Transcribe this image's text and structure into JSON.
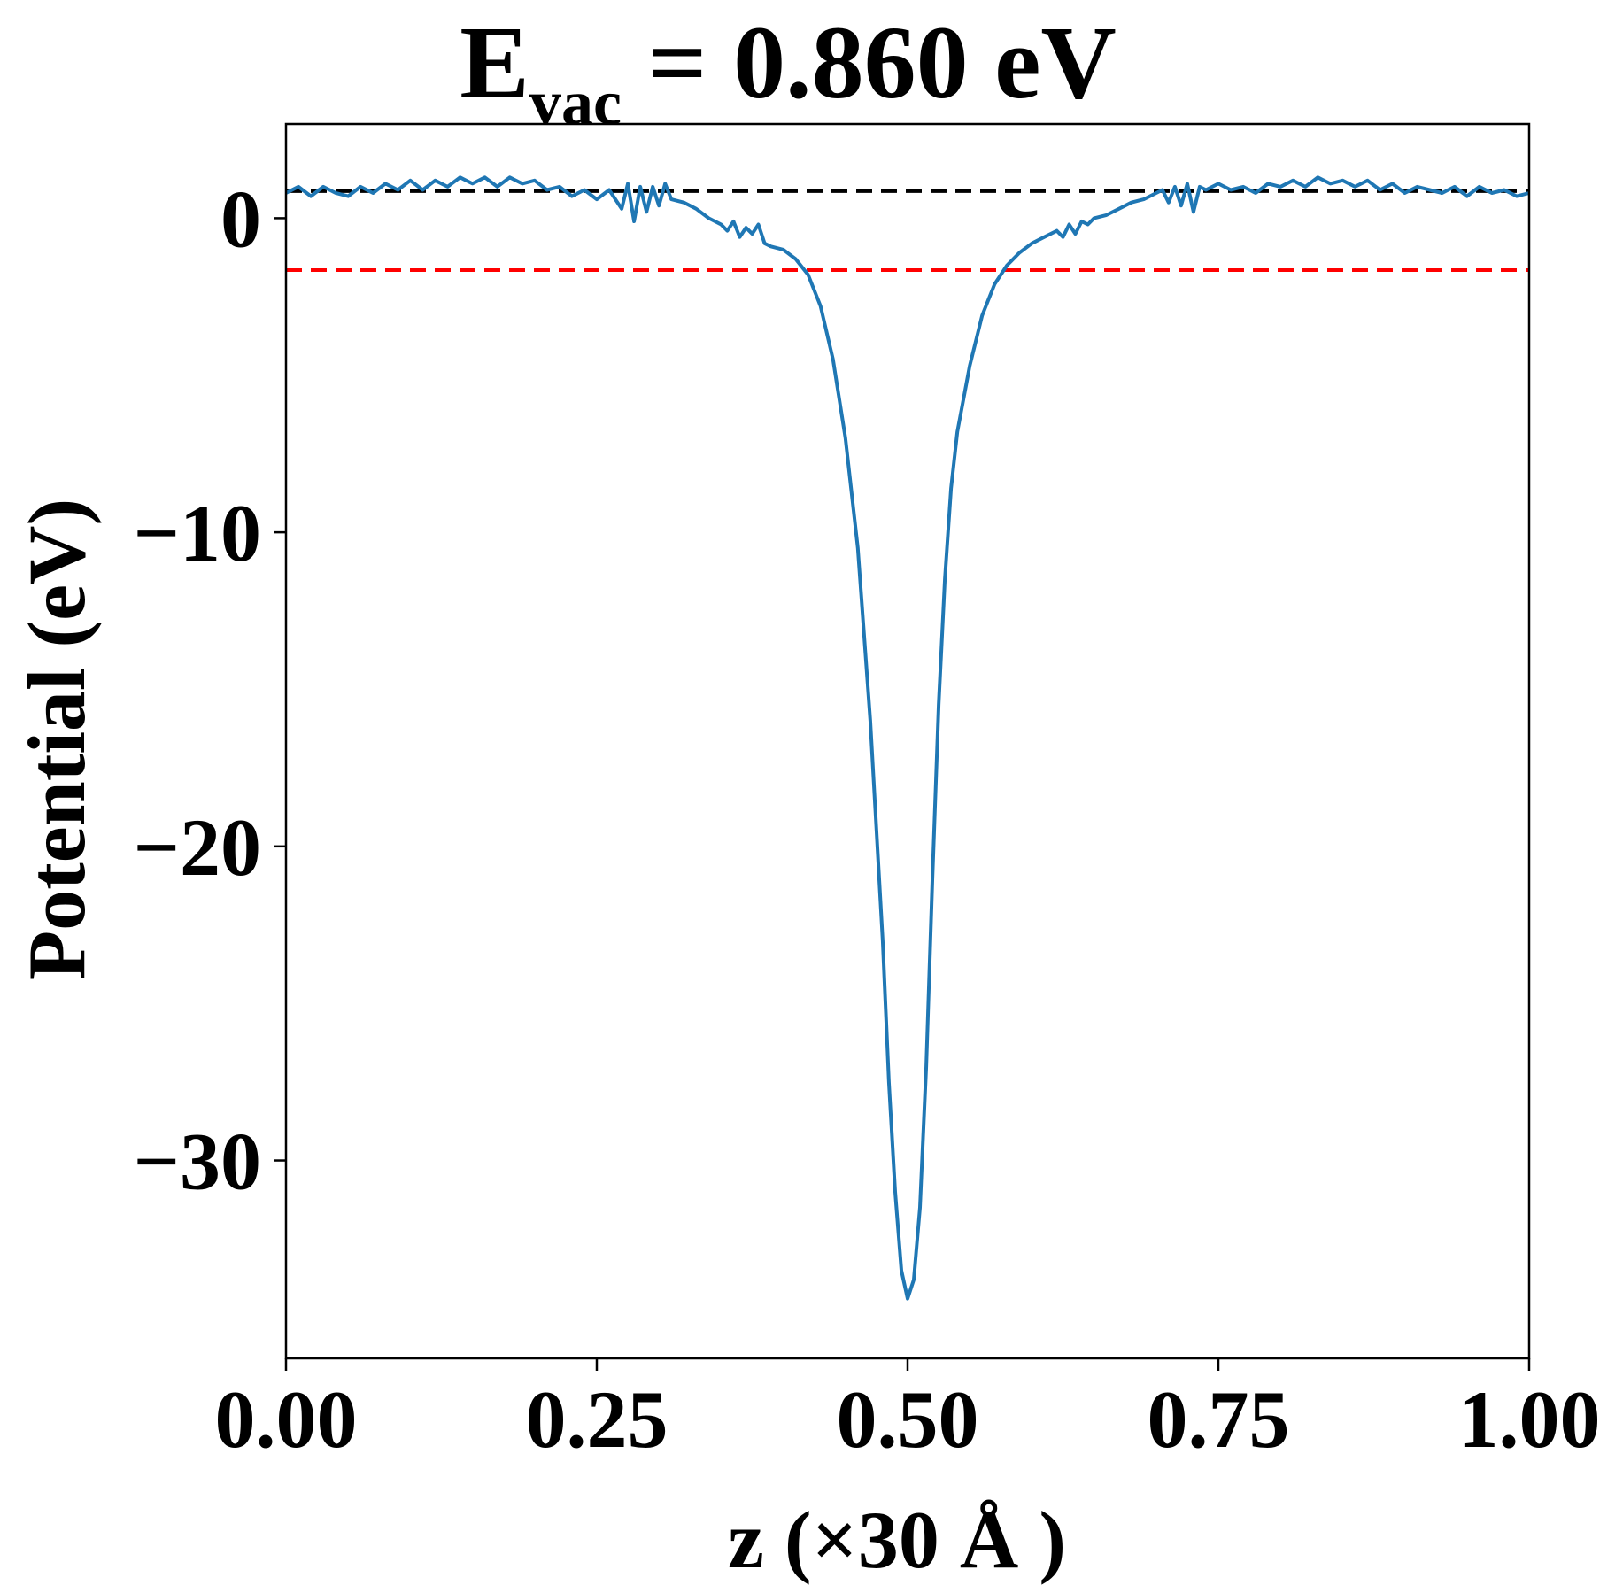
{
  "chart_data": {
    "type": "line",
    "title": {
      "base": "E",
      "subscript": "vac",
      "rest": " = 0.860 eV"
    },
    "xlabel": "z (×30 Å )",
    "ylabel": "Potential (eV)",
    "xlim": [
      0.0,
      1.0
    ],
    "ylim": [
      -36.3,
      3.0
    ],
    "xticks": [
      0.0,
      0.25,
      0.5,
      0.75,
      1.0
    ],
    "xtick_labels": [
      "0.00",
      "0.25",
      "0.50",
      "0.75",
      "1.00"
    ],
    "yticks": [
      0,
      -10,
      -20,
      -30
    ],
    "ytick_labels": [
      "0",
      "−10",
      "−20",
      "−30"
    ],
    "grid": false,
    "reference_lines": [
      {
        "value": 0.86,
        "color": "#000000",
        "style": "dashed"
      },
      {
        "value": -1.65,
        "color": "#ff0000",
        "style": "dashed"
      }
    ],
    "series": [
      {
        "color": "#1f77b4",
        "x": [
          0.0,
          0.01,
          0.02,
          0.03,
          0.04,
          0.05,
          0.06,
          0.07,
          0.08,
          0.09,
          0.1,
          0.11,
          0.12,
          0.13,
          0.14,
          0.15,
          0.16,
          0.17,
          0.18,
          0.19,
          0.2,
          0.21,
          0.22,
          0.23,
          0.24,
          0.25,
          0.26,
          0.27,
          0.275,
          0.28,
          0.285,
          0.29,
          0.295,
          0.3,
          0.305,
          0.31,
          0.32,
          0.33,
          0.34,
          0.35,
          0.355,
          0.36,
          0.365,
          0.37,
          0.375,
          0.38,
          0.385,
          0.39,
          0.4,
          0.41,
          0.42,
          0.43,
          0.44,
          0.45,
          0.46,
          0.47,
          0.48,
          0.485,
          0.49,
          0.495,
          0.5,
          0.505,
          0.51,
          0.515,
          0.52,
          0.525,
          0.53,
          0.535,
          0.54,
          0.55,
          0.56,
          0.57,
          0.58,
          0.59,
          0.6,
          0.61,
          0.62,
          0.625,
          0.63,
          0.635,
          0.64,
          0.645,
          0.65,
          0.66,
          0.67,
          0.68,
          0.69,
          0.7,
          0.705,
          0.71,
          0.715,
          0.72,
          0.725,
          0.73,
          0.735,
          0.74,
          0.75,
          0.76,
          0.77,
          0.78,
          0.79,
          0.8,
          0.81,
          0.82,
          0.83,
          0.84,
          0.85,
          0.86,
          0.87,
          0.88,
          0.89,
          0.9,
          0.91,
          0.92,
          0.93,
          0.94,
          0.95,
          0.96,
          0.97,
          0.98,
          0.99,
          1.0
        ],
        "y": [
          0.8,
          1.0,
          0.7,
          1.0,
          0.8,
          0.7,
          1.0,
          0.8,
          1.1,
          0.9,
          1.2,
          0.9,
          1.2,
          1.0,
          1.3,
          1.1,
          1.3,
          1.0,
          1.3,
          1.1,
          1.2,
          0.9,
          1.0,
          0.7,
          0.9,
          0.6,
          0.9,
          0.3,
          1.1,
          -0.1,
          1.0,
          0.2,
          1.0,
          0.4,
          1.1,
          0.6,
          0.5,
          0.3,
          0.0,
          -0.2,
          -0.4,
          -0.1,
          -0.6,
          -0.3,
          -0.5,
          -0.2,
          -0.8,
          -0.9,
          -1.0,
          -1.3,
          -1.8,
          -2.8,
          -4.5,
          -7.0,
          -10.5,
          -16.0,
          -23.0,
          -27.5,
          -31.0,
          -33.5,
          -34.4,
          -33.8,
          -31.5,
          -27.0,
          -21.0,
          -15.5,
          -11.5,
          -8.6,
          -6.8,
          -4.7,
          -3.1,
          -2.1,
          -1.5,
          -1.1,
          -0.8,
          -0.6,
          -0.4,
          -0.6,
          -0.2,
          -0.5,
          -0.1,
          -0.2,
          0.0,
          0.1,
          0.3,
          0.5,
          0.6,
          0.8,
          0.9,
          0.5,
          1.0,
          0.4,
          1.1,
          0.2,
          1.0,
          0.9,
          1.1,
          0.9,
          1.0,
          0.8,
          1.1,
          1.0,
          1.2,
          1.0,
          1.3,
          1.1,
          1.2,
          1.0,
          1.2,
          0.9,
          1.1,
          0.8,
          1.0,
          0.9,
          0.8,
          1.0,
          0.7,
          1.0,
          0.8,
          0.9,
          0.7,
          0.8
        ]
      }
    ]
  }
}
